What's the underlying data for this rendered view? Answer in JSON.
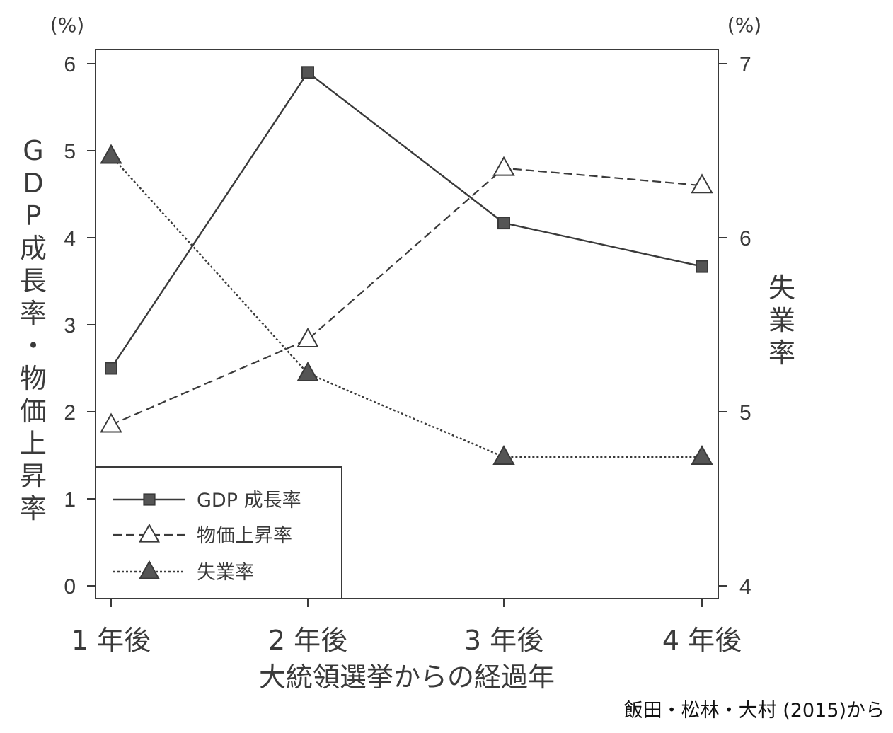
{
  "chart_data": {
    "type": "line",
    "xlabel": "大統領選挙からの経過年",
    "categories": [
      "1 年後",
      "2 年後",
      "3 年後",
      "4 年後"
    ],
    "left_axis": {
      "label": "GDP成長率・物価上昇率",
      "unit": "(%)",
      "range": [
        0,
        6
      ],
      "ticks": [
        "0",
        "1",
        "2",
        "3",
        "4",
        "5",
        "6"
      ]
    },
    "right_axis": {
      "label": "失業率",
      "unit": "(%)",
      "range": [
        4,
        7
      ],
      "ticks": [
        "4",
        "5",
        "6",
        "7"
      ]
    },
    "series": [
      {
        "name": "GDP 成長率",
        "axis": "left",
        "values": [
          2.5,
          5.9,
          4.17,
          3.67
        ],
        "line_style": "solid",
        "marker": "square-filled"
      },
      {
        "name": "物価上昇率",
        "axis": "left",
        "values": [
          1.85,
          2.83,
          4.8,
          4.6
        ],
        "line_style": "dashed",
        "marker": "triangle-open"
      },
      {
        "name": "失業率",
        "axis": "right",
        "values": [
          6.47,
          5.22,
          4.74,
          4.74
        ],
        "line_style": "dotted",
        "marker": "triangle-filled"
      }
    ],
    "legend_position": "bottom-left",
    "grid": false,
    "source": "飯田・松林・大村 (2015)から"
  },
  "colors": {
    "ink": "#3a3a3a",
    "marker_fill": "#555555"
  }
}
